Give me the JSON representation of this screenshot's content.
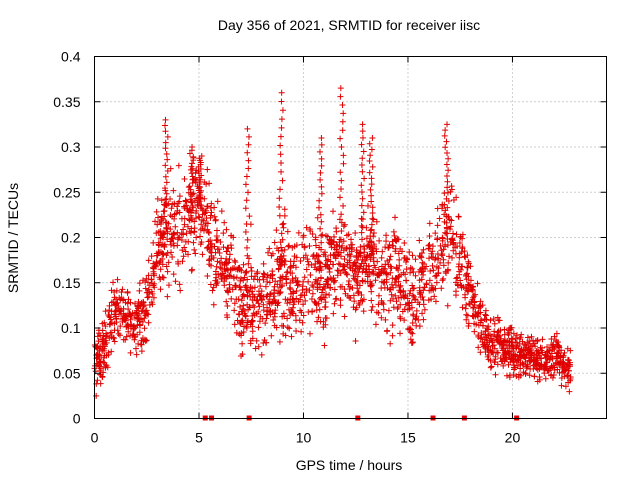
{
  "chart_data": {
    "type": "scatter",
    "title": "Day 356 of 2021, SRMTID for receiver iisc",
    "xlabel": "GPS time / hours",
    "ylabel": "SRMTID / TECUs",
    "xlim": [
      0,
      24.5
    ],
    "ylim": [
      0,
      0.4
    ],
    "x_ticks": [
      0,
      5,
      10,
      15,
      20
    ],
    "x_tick_labels": [
      "0",
      "5",
      "10",
      "15",
      "20"
    ],
    "y_ticks": [
      0,
      0.05,
      0.1,
      0.15,
      0.2,
      0.25,
      0.3,
      0.35,
      0.4
    ],
    "y_tick_labels": [
      "0",
      "0.05",
      "0.1",
      "0.15",
      "0.2",
      "0.25",
      "0.3",
      "0.35",
      "0.4"
    ],
    "grid": true,
    "marker": "+",
    "color": "#e00000",
    "envelope": {
      "x": [
        0,
        0.5,
        1.0,
        1.5,
        2.0,
        2.5,
        3.0,
        3.5,
        4.0,
        4.5,
        5.0,
        5.5,
        6.0,
        6.5,
        7.0,
        7.5,
        8.0,
        8.5,
        9.0,
        9.5,
        10.0,
        10.5,
        11.0,
        11.5,
        12.0,
        12.5,
        13.0,
        13.5,
        14.0,
        14.5,
        15.0,
        15.5,
        16.0,
        16.5,
        17.0,
        17.5,
        18.0,
        18.5,
        19.0,
        19.5,
        20.0,
        20.5,
        21.0,
        21.5,
        22.0,
        22.5,
        22.8
      ],
      "center": [
        0.06,
        0.08,
        0.12,
        0.11,
        0.1,
        0.12,
        0.19,
        0.2,
        0.2,
        0.22,
        0.24,
        0.2,
        0.17,
        0.16,
        0.13,
        0.14,
        0.12,
        0.14,
        0.16,
        0.14,
        0.15,
        0.16,
        0.14,
        0.17,
        0.17,
        0.15,
        0.18,
        0.17,
        0.15,
        0.16,
        0.13,
        0.14,
        0.17,
        0.18,
        0.2,
        0.17,
        0.13,
        0.1,
        0.08,
        0.08,
        0.07,
        0.07,
        0.07,
        0.06,
        0.07,
        0.06,
        0.05
      ],
      "spread": [
        0.03,
        0.03,
        0.03,
        0.03,
        0.03,
        0.04,
        0.04,
        0.05,
        0.06,
        0.05,
        0.05,
        0.05,
        0.05,
        0.05,
        0.05,
        0.05,
        0.04,
        0.05,
        0.06,
        0.05,
        0.05,
        0.05,
        0.05,
        0.05,
        0.05,
        0.05,
        0.05,
        0.05,
        0.05,
        0.05,
        0.05,
        0.05,
        0.05,
        0.05,
        0.05,
        0.05,
        0.03,
        0.03,
        0.025,
        0.025,
        0.025,
        0.02,
        0.02,
        0.02,
        0.02,
        0.02,
        0.02
      ]
    },
    "spikes": [
      {
        "x": 3.4,
        "peak": 0.33
      },
      {
        "x": 4.6,
        "peak": 0.3
      },
      {
        "x": 5.0,
        "peak": 0.29
      },
      {
        "x": 7.3,
        "peak": 0.32
      },
      {
        "x": 8.9,
        "peak": 0.36
      },
      {
        "x": 10.8,
        "peak": 0.31
      },
      {
        "x": 11.8,
        "peak": 0.365
      },
      {
        "x": 12.8,
        "peak": 0.325
      },
      {
        "x": 13.2,
        "peak": 0.31
      },
      {
        "x": 16.8,
        "peak": 0.325
      }
    ],
    "baseline_markers_x": [
      5.3,
      5.6,
      7.4,
      12.6,
      16.2,
      17.7,
      20.2
    ]
  }
}
